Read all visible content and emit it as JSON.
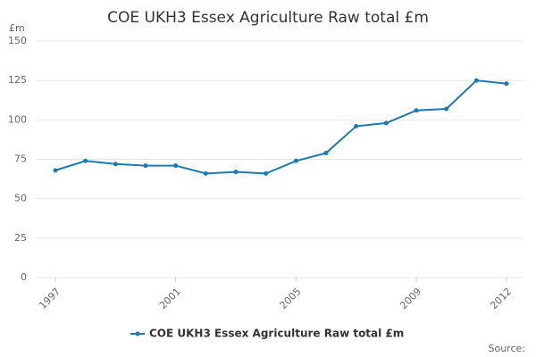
{
  "chart_data": {
    "type": "line",
    "title": "COE UKH3 Essex Agriculture Raw total £m",
    "y_label": "£m",
    "source": "Source:",
    "x": [
      1997,
      1998,
      1999,
      2000,
      2001,
      2002,
      2003,
      2004,
      2005,
      2006,
      2007,
      2008,
      2009,
      2010,
      2011,
      2012
    ],
    "series": [
      {
        "name": "COE UKH3 Essex Agriculture Raw total £m",
        "color": "#1a7ab5",
        "values": [
          68,
          74,
          72,
          71,
          71,
          66,
          67,
          66,
          74,
          79,
          96,
          98,
          106,
          107,
          125,
          123
        ]
      }
    ],
    "xlim": [
      1997,
      2012
    ],
    "xticks": [
      1997,
      2001,
      2005,
      2009,
      2012
    ],
    "ylim": [
      0,
      150
    ],
    "yticks": [
      0,
      25,
      50,
      75,
      100,
      125,
      150
    ],
    "grid": true
  }
}
